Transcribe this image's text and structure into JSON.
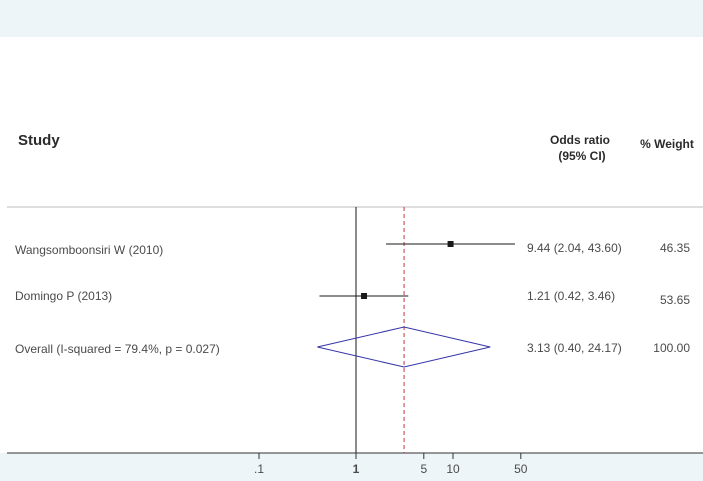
{
  "chart_data": {
    "type": "forest",
    "headers": {
      "study": "Study",
      "effect_line1": "Odds ratio",
      "effect_line2": "(95% CI)",
      "weight": "% Weight"
    },
    "studies": [
      {
        "label": "Wangsomboonsiri W (2010)",
        "or": 9.44,
        "lower": 2.04,
        "upper": 43.6,
        "ci_text": "9.44 (2.04, 43.60)",
        "weight": "46.35"
      },
      {
        "label": "Domingo P (2013)",
        "or": 1.21,
        "lower": 0.42,
        "upper": 3.46,
        "ci_text": "1.21 (0.42, 3.46)",
        "weight": "53.65"
      }
    ],
    "overall": {
      "label": "Overall  (I-squared = 79.4%, p = 0.027)",
      "or": 3.13,
      "lower": 0.4,
      "upper": 24.17,
      "ci_text": "3.13 (0.40, 24.17)",
      "weight": "100.00"
    },
    "x_axis": {
      "scale": "log",
      "ticks": [
        0.1,
        1,
        5,
        10,
        50
      ],
      "tick_labels": [
        ".1",
        "1",
        "5",
        "10",
        "50"
      ],
      "range": [
        0.1,
        50
      ]
    },
    "null_line": 1,
    "colors": {
      "diamond": "#3535a8",
      "pooled_line": "#c0393b",
      "marker": "#1a1a1a",
      "watermark": "#e6e6e6",
      "band": "#eef5f8"
    }
  }
}
